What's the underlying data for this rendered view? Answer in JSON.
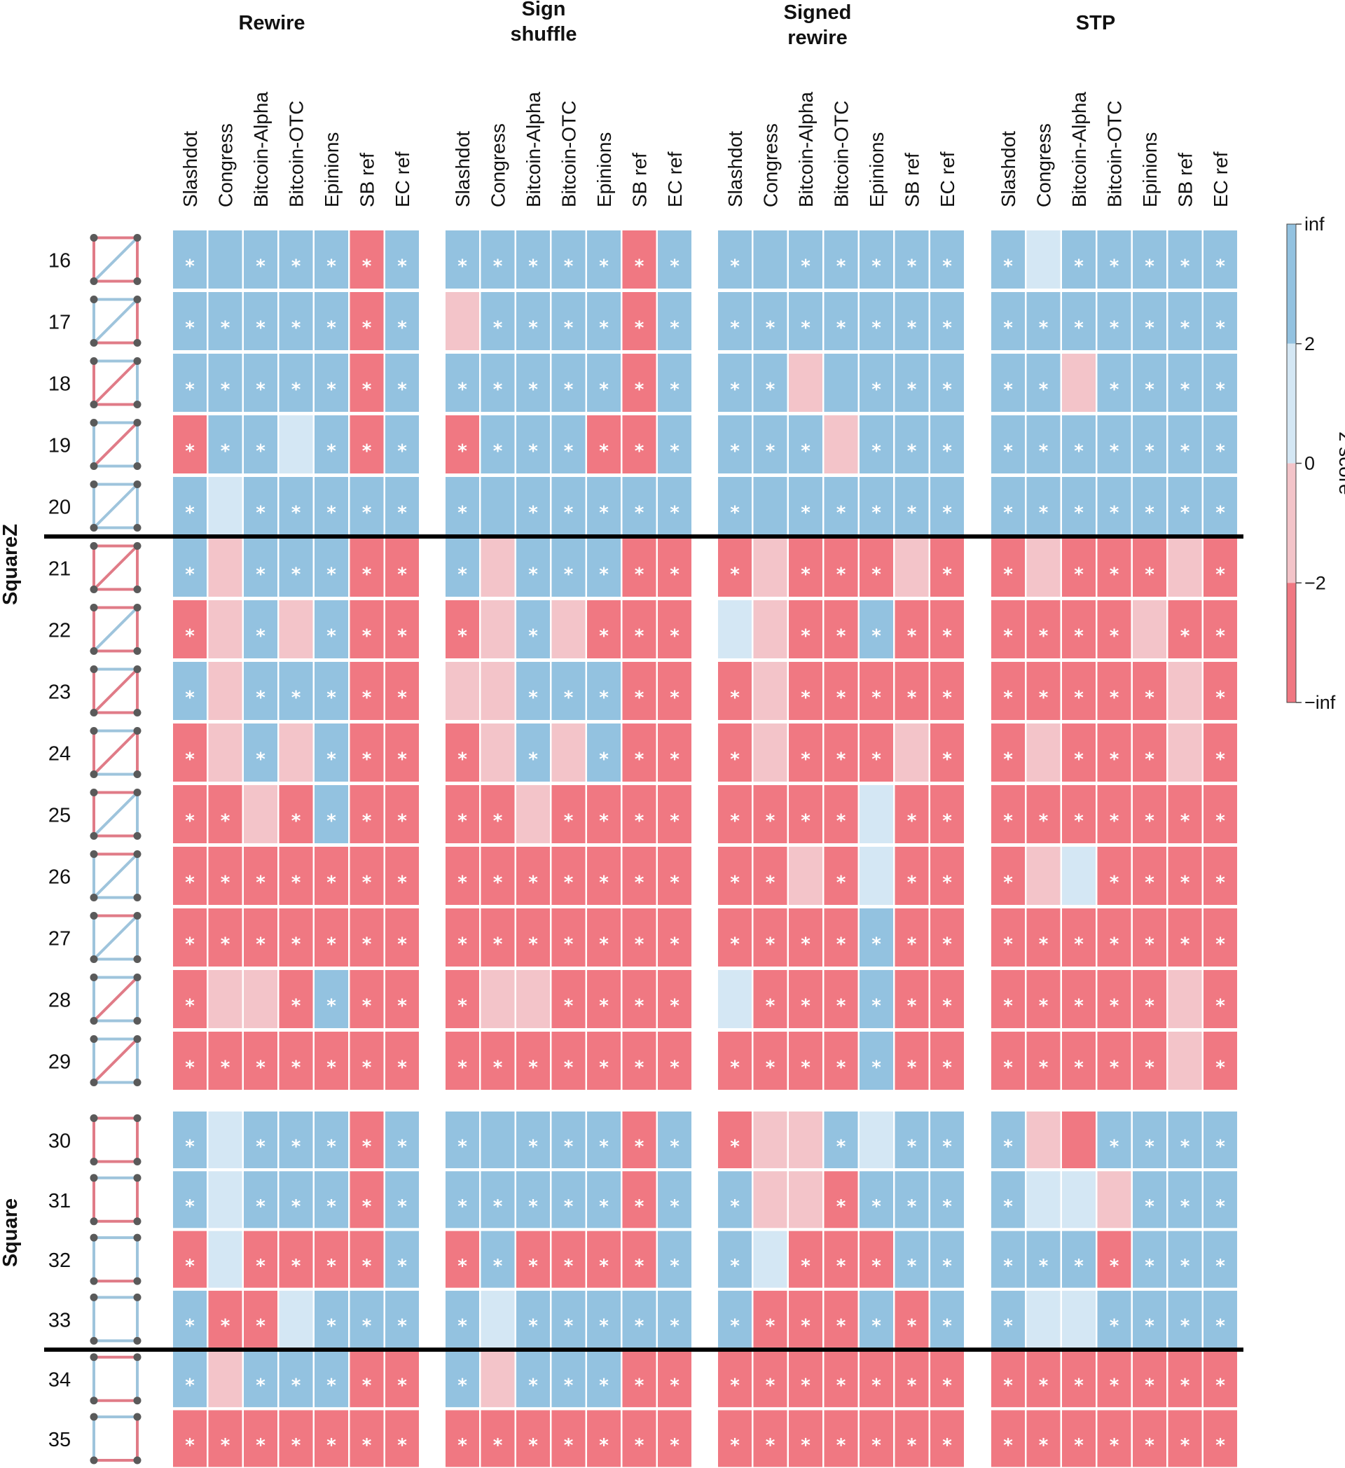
{
  "chart_data": {
    "type": "heatmap",
    "colorbar": {
      "title": "z score",
      "ticks": [
        "inf",
        "2",
        "0",
        "−2",
        "−inf"
      ]
    },
    "colors": {
      "strong_pos": "#93c2e0",
      "weak_pos": "#d4e7f4",
      "weak_neg": "#f3c4c9",
      "strong_neg": "#f07882"
    },
    "level_legend": {
      "P": "z > 2",
      "p": "0 < z < 2",
      "n": "-2 < z < 0",
      "N": "z < -2"
    },
    "columns": [
      "Slashdot",
      "Congress",
      "Bitcoin-Alpha",
      "Bitcoin-OTC",
      "Epinions",
      "SB ref",
      "EC ref"
    ],
    "groups": [
      "Rewire",
      "Sign shuffle",
      "Signed rewire",
      "STP"
    ],
    "sections": [
      "SquareZ",
      "Square"
    ],
    "rows": [
      {
        "id": "16",
        "section": "SquareZ",
        "motif": {
          "t": "R",
          "r": "R",
          "b": "R",
          "l": "R",
          "d": "B"
        },
        "cells": [
          [
            "P*",
            "P",
            "P*",
            "P*",
            "P*",
            "N*",
            "P*"
          ],
          [
            "P*",
            "P*",
            "P*",
            "P*",
            "P*",
            "N*",
            "P*"
          ],
          [
            "P*",
            "P",
            "P*",
            "P*",
            "P*",
            "P*",
            "P*"
          ],
          [
            "P*",
            "p",
            "P*",
            "P*",
            "P*",
            "P*",
            "P*"
          ]
        ]
      },
      {
        "id": "17",
        "section": "SquareZ",
        "motif": {
          "t": "B",
          "r": "R",
          "b": "R",
          "l": "B",
          "d": "B"
        },
        "cells": [
          [
            "P*",
            "P*",
            "P*",
            "P*",
            "P*",
            "N*",
            "P*"
          ],
          [
            "n",
            "P*",
            "P*",
            "P*",
            "P*",
            "N*",
            "P*"
          ],
          [
            "P*",
            "P*",
            "P*",
            "P*",
            "P*",
            "P*",
            "P*"
          ],
          [
            "P*",
            "P*",
            "P*",
            "P*",
            "P*",
            "P*",
            "P*"
          ]
        ]
      },
      {
        "id": "18",
        "section": "SquareZ",
        "motif": {
          "t": "B",
          "r": "B",
          "b": "R",
          "l": "R",
          "d": "R"
        },
        "cells": [
          [
            "P*",
            "P*",
            "P*",
            "P*",
            "P*",
            "N*",
            "P*"
          ],
          [
            "P*",
            "P*",
            "P*",
            "P*",
            "P*",
            "N*",
            "P*"
          ],
          [
            "P*",
            "P*",
            "n",
            "P",
            "P*",
            "P*",
            "P*"
          ],
          [
            "P*",
            "P*",
            "n",
            "P*",
            "P*",
            "P*",
            "P*"
          ]
        ]
      },
      {
        "id": "19",
        "section": "SquareZ",
        "motif": {
          "t": "B",
          "r": "B",
          "b": "B",
          "l": "B",
          "d": "R"
        },
        "cells": [
          [
            "N*",
            "P*",
            "P*",
            "p",
            "P*",
            "N*",
            "P*"
          ],
          [
            "N*",
            "P*",
            "P*",
            "P*",
            "N*",
            "N*",
            "P*"
          ],
          [
            "P*",
            "P*",
            "P*",
            "n",
            "P*",
            "P*",
            "P*"
          ],
          [
            "P*",
            "P*",
            "P*",
            "P*",
            "P*",
            "P*",
            "P*"
          ]
        ]
      },
      {
        "id": "20",
        "section": "SquareZ",
        "motif": {
          "t": "B",
          "r": "B",
          "b": "B",
          "l": "B",
          "d": "B"
        },
        "cells": [
          [
            "P*",
            "p",
            "P*",
            "P*",
            "P*",
            "P*",
            "P*"
          ],
          [
            "P*",
            "P",
            "P*",
            "P*",
            "P*",
            "P*",
            "P*"
          ],
          [
            "P*",
            "P",
            "P*",
            "P*",
            "P*",
            "P*",
            "P*"
          ],
          [
            "P*",
            "P*",
            "P*",
            "P*",
            "P*",
            "P*",
            "P*"
          ]
        ]
      },
      {
        "id": "21",
        "section": "SquareZ",
        "motif": {
          "t": "R",
          "r": "R",
          "b": "R",
          "l": "R",
          "d": "R"
        },
        "cells": [
          [
            "P*",
            "n",
            "P*",
            "P*",
            "P*",
            "N*",
            "N*"
          ],
          [
            "P*",
            "n",
            "P*",
            "P*",
            "P*",
            "N*",
            "N*"
          ],
          [
            "N*",
            "n",
            "N*",
            "N*",
            "N*",
            "n",
            "N*"
          ],
          [
            "N*",
            "n",
            "N*",
            "N*",
            "N*",
            "n",
            "N*"
          ]
        ]
      },
      {
        "id": "22",
        "section": "SquareZ",
        "motif": {
          "t": "R",
          "r": "R",
          "b": "R",
          "l": "R",
          "d": "B"
        },
        "cells": [
          [
            "N*",
            "n",
            "P*",
            "n",
            "P*",
            "N*",
            "N*"
          ],
          [
            "N*",
            "n",
            "P*",
            "n",
            "N*",
            "N*",
            "N*"
          ],
          [
            "p",
            "n",
            "N*",
            "N*",
            "P*",
            "N*",
            "N*"
          ],
          [
            "N*",
            "N*",
            "N*",
            "N*",
            "n",
            "N*",
            "N*"
          ]
        ]
      },
      {
        "id": "23",
        "section": "SquareZ",
        "motif": {
          "t": "B",
          "r": "R",
          "b": "R",
          "l": "R",
          "d": "R"
        },
        "cells": [
          [
            "P*",
            "n",
            "P*",
            "P*",
            "P*",
            "N*",
            "N*"
          ],
          [
            "n",
            "n",
            "P*",
            "P*",
            "P*",
            "N*",
            "N*"
          ],
          [
            "N*",
            "n",
            "N*",
            "N*",
            "N*",
            "N*",
            "N*"
          ],
          [
            "N*",
            "N*",
            "N*",
            "N*",
            "N*",
            "n",
            "N*"
          ]
        ]
      },
      {
        "id": "24",
        "section": "SquareZ",
        "motif": {
          "t": "B",
          "r": "R",
          "b": "B",
          "l": "R",
          "d": "R"
        },
        "cells": [
          [
            "N*",
            "n",
            "P*",
            "n",
            "P*",
            "N*",
            "N*"
          ],
          [
            "N*",
            "n",
            "P*",
            "n",
            "P*",
            "N*",
            "N*"
          ],
          [
            "N*",
            "n",
            "N*",
            "N*",
            "N*",
            "n",
            "N*"
          ],
          [
            "N*",
            "n",
            "N*",
            "N*",
            "N*",
            "n",
            "N*"
          ]
        ]
      },
      {
        "id": "25",
        "section": "SquareZ",
        "motif": {
          "t": "R",
          "r": "B",
          "b": "R",
          "l": "R",
          "d": "B"
        },
        "cells": [
          [
            "N*",
            "N*",
            "n",
            "N*",
            "P*",
            "N*",
            "N*"
          ],
          [
            "N*",
            "N*",
            "n",
            "N*",
            "N*",
            "N*",
            "N*"
          ],
          [
            "N*",
            "N*",
            "N*",
            "N*",
            "p",
            "N*",
            "N*"
          ],
          [
            "N*",
            "N*",
            "N*",
            "N*",
            "N*",
            "N*",
            "N*"
          ]
        ]
      },
      {
        "id": "26",
        "section": "SquareZ",
        "motif": {
          "t": "R",
          "r": "B",
          "b": "B",
          "l": "B",
          "d": "B"
        },
        "cells": [
          [
            "N*",
            "N*",
            "N*",
            "N*",
            "N*",
            "N*",
            "N*"
          ],
          [
            "N*",
            "N*",
            "N*",
            "N*",
            "N*",
            "N*",
            "N*"
          ],
          [
            "N*",
            "N*",
            "n",
            "N*",
            "p",
            "N*",
            "N*"
          ],
          [
            "N*",
            "n",
            "p",
            "N*",
            "N*",
            "N*",
            "N*"
          ]
        ]
      },
      {
        "id": "27",
        "section": "SquareZ",
        "motif": {
          "t": "R",
          "r": "B",
          "b": "B",
          "l": "B",
          "d": "B"
        },
        "cells": [
          [
            "N*",
            "N*",
            "N*",
            "N*",
            "N*",
            "N*",
            "N*"
          ],
          [
            "N*",
            "N*",
            "N*",
            "N*",
            "N*",
            "N*",
            "N*"
          ],
          [
            "N*",
            "N*",
            "N*",
            "N*",
            "P*",
            "N*",
            "N*"
          ],
          [
            "N*",
            "N*",
            "N*",
            "N*",
            "N*",
            "N*",
            "N*"
          ]
        ]
      },
      {
        "id": "28",
        "section": "SquareZ",
        "motif": {
          "t": "B",
          "r": "B",
          "b": "B",
          "l": "B",
          "d": "R"
        },
        "cells": [
          [
            "N*",
            "n",
            "n",
            "N*",
            "P*",
            "N*",
            "N*"
          ],
          [
            "N*",
            "n",
            "n",
            "N*",
            "N*",
            "N*",
            "N*"
          ],
          [
            "p",
            "N*",
            "N*",
            "N*",
            "P*",
            "N*",
            "N*"
          ],
          [
            "N*",
            "N*",
            "N*",
            "N*",
            "N*",
            "n",
            "N*"
          ]
        ]
      },
      {
        "id": "29",
        "section": "SquareZ",
        "motif": {
          "t": "B",
          "r": "B",
          "b": "B",
          "l": "B",
          "d": "R"
        },
        "cells": [
          [
            "N*",
            "N*",
            "N*",
            "N*",
            "N*",
            "N*",
            "N*"
          ],
          [
            "N*",
            "N*",
            "N*",
            "N*",
            "N*",
            "N*",
            "N*"
          ],
          [
            "N*",
            "N*",
            "N*",
            "N*",
            "P*",
            "N*",
            "N*"
          ],
          [
            "N*",
            "N*",
            "N*",
            "N*",
            "N*",
            "n",
            "N*"
          ]
        ]
      },
      {
        "id": "30",
        "section": "Square",
        "motif": {
          "t": "R",
          "r": "R",
          "b": "R",
          "l": "R"
        },
        "cells": [
          [
            "P*",
            "p",
            "P*",
            "P*",
            "P*",
            "N*",
            "P*"
          ],
          [
            "P*",
            "P",
            "P*",
            "P*",
            "P*",
            "N*",
            "P*"
          ],
          [
            "N*",
            "n",
            "n",
            "P*",
            "p",
            "P*",
            "P*"
          ],
          [
            "P*",
            "n",
            "N",
            "P*",
            "P*",
            "P*",
            "P*"
          ]
        ]
      },
      {
        "id": "31",
        "section": "Square",
        "motif": {
          "t": "B",
          "r": "R",
          "b": "R",
          "l": "R"
        },
        "cells": [
          [
            "P*",
            "p",
            "P*",
            "P*",
            "P*",
            "N*",
            "P*"
          ],
          [
            "P*",
            "P*",
            "P*",
            "P*",
            "P*",
            "N*",
            "P*"
          ],
          [
            "P*",
            "n",
            "n",
            "N*",
            "P*",
            "P*",
            "P*"
          ],
          [
            "P*",
            "p",
            "p",
            "n",
            "P*",
            "P*",
            "P*"
          ]
        ]
      },
      {
        "id": "32",
        "section": "Square",
        "motif": {
          "t": "B",
          "r": "B",
          "b": "R",
          "l": "B"
        },
        "cells": [
          [
            "N*",
            "p",
            "N*",
            "N*",
            "N*",
            "N*",
            "P*"
          ],
          [
            "N*",
            "P*",
            "N*",
            "N*",
            "N*",
            "N*",
            "P*"
          ],
          [
            "P*",
            "p",
            "N*",
            "N*",
            "N*",
            "P*",
            "P*"
          ],
          [
            "P*",
            "P*",
            "P*",
            "N*",
            "P*",
            "P*",
            "P*"
          ]
        ]
      },
      {
        "id": "33",
        "section": "Square",
        "motif": {
          "t": "B",
          "r": "B",
          "b": "B",
          "l": "B"
        },
        "cells": [
          [
            "P*",
            "N*",
            "N*",
            "p",
            "P*",
            "P*",
            "P*"
          ],
          [
            "P*",
            "p",
            "P*",
            "P*",
            "P*",
            "P*",
            "P*"
          ],
          [
            "P*",
            "N*",
            "N*",
            "N*",
            "P*",
            "N*",
            "P*"
          ],
          [
            "P*",
            "p",
            "p",
            "P*",
            "P*",
            "P*",
            "P*"
          ]
        ]
      },
      {
        "id": "34",
        "section": "Square",
        "motif": {
          "t": "R",
          "r": "B",
          "b": "R",
          "l": "B"
        },
        "cells": [
          [
            "P*",
            "n",
            "P*",
            "P*",
            "P*",
            "N*",
            "N*"
          ],
          [
            "P*",
            "n",
            "P*",
            "P*",
            "P*",
            "N*",
            "N*"
          ],
          [
            "N*",
            "N*",
            "N*",
            "N*",
            "N*",
            "N*",
            "N*"
          ],
          [
            "N*",
            "N*",
            "N*",
            "N*",
            "N*",
            "N*",
            "N*"
          ]
        ]
      },
      {
        "id": "35",
        "section": "Square",
        "motif": {
          "t": "B",
          "r": "R",
          "b": "R",
          "l": "B"
        },
        "cells": [
          [
            "N*",
            "N*",
            "N*",
            "N*",
            "N*",
            "N*",
            "N*"
          ],
          [
            "N*",
            "N*",
            "N*",
            "N*",
            "N*",
            "N*",
            "N*"
          ],
          [
            "N*",
            "N*",
            "N*",
            "N*",
            "N*",
            "N*",
            "N*"
          ],
          [
            "N*",
            "N*",
            "N*",
            "N*",
            "N*",
            "N*",
            "N*"
          ]
        ]
      }
    ]
  }
}
